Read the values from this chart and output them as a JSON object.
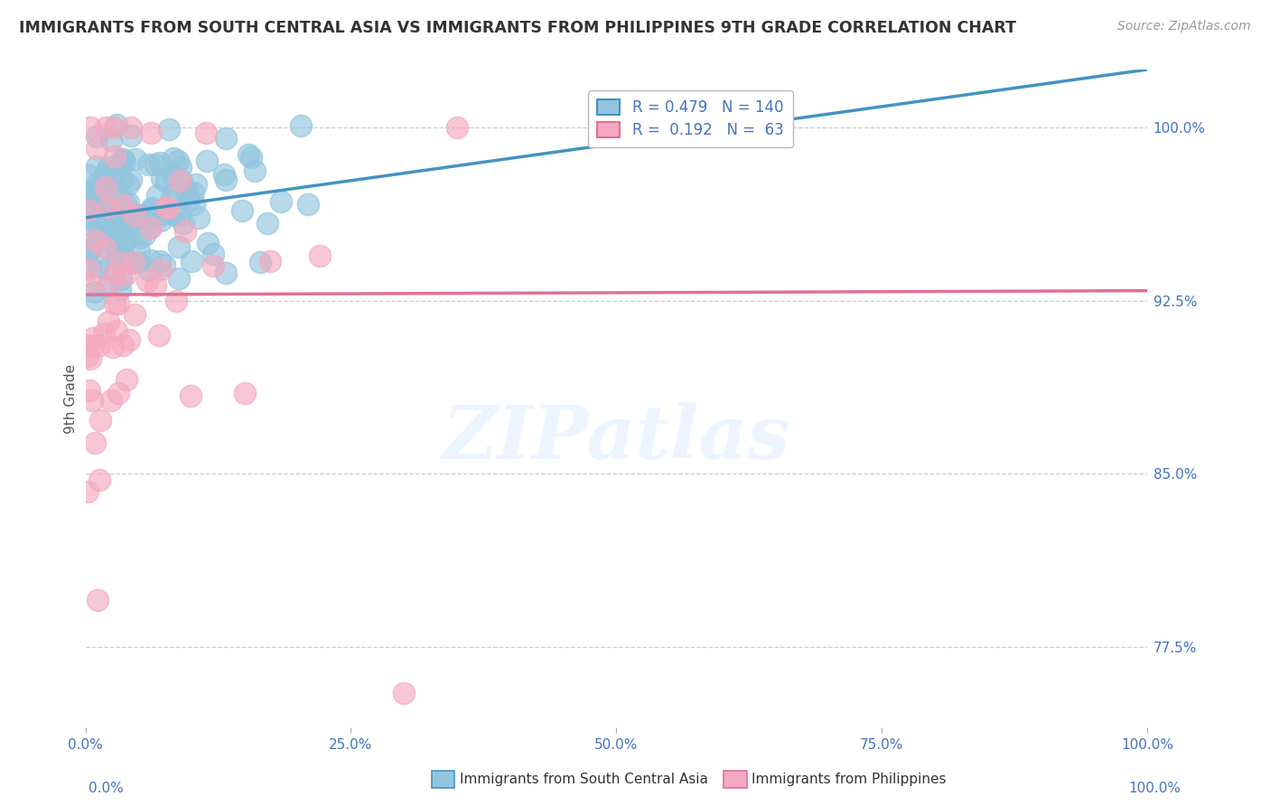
{
  "title": "IMMIGRANTS FROM SOUTH CENTRAL ASIA VS IMMIGRANTS FROM PHILIPPINES 9TH GRADE CORRELATION CHART",
  "source": "Source: ZipAtlas.com",
  "ylabel": "9th Grade",
  "xlim": [
    0.0,
    1.0
  ],
  "ylim": [
    0.74,
    1.025
  ],
  "blue_R": 0.479,
  "blue_N": 140,
  "pink_R": 0.192,
  "pink_N": 63,
  "blue_color": "#92c5de",
  "pink_color": "#f4a9be",
  "blue_line_color": "#4393c3",
  "pink_line_color": "#e07098",
  "legend_label_blue": "Immigrants from South Central Asia",
  "legend_label_pink": "Immigrants from Philippines",
  "watermark": "ZIPatlas",
  "background_color": "#ffffff",
  "ytick_vals": [
    0.775,
    0.85,
    0.925,
    1.0
  ],
  "ytick_labels": [
    "77.5%",
    "85.0%",
    "92.5%",
    "100.0%"
  ],
  "xtick_vals": [
    0.0,
    0.25,
    0.5,
    0.75,
    1.0
  ],
  "xtick_labels": [
    "0.0%",
    "25.0%",
    "50.0%",
    "75.0%",
    "100.0%"
  ]
}
